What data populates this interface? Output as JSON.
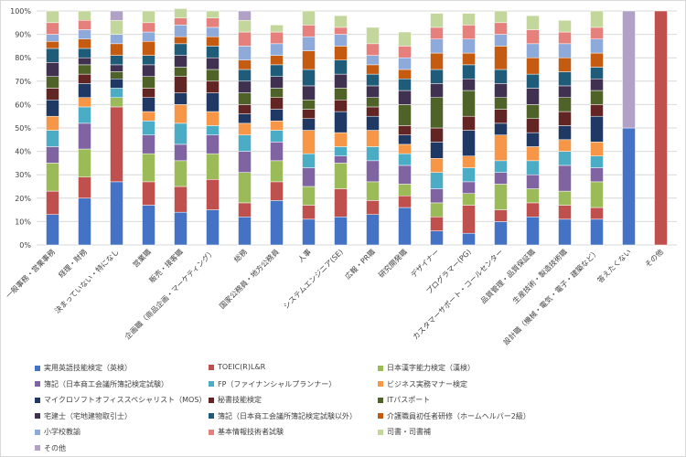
{
  "chart_data": {
    "type": "bar",
    "stacked": true,
    "percent_stacked": true,
    "y_ticks": [
      "0%",
      "10%",
      "20%",
      "30%",
      "40%",
      "50%",
      "60%",
      "70%",
      "80%",
      "90%",
      "100%"
    ],
    "ylim": [
      0,
      100
    ],
    "grid": true,
    "legend_position": "bottom",
    "categories": [
      "一般事務・営業事務",
      "経理・財務",
      "決まっていない・特になし",
      "営業職",
      "販売・接客職",
      "企画職（商品企画・マーケティング）",
      "総務",
      "国家公務員・地方公務員",
      "人事",
      "システムエンジニア(SE)",
      "広報・PR職",
      "研究開発職",
      "デザイナー",
      "プログラマー(PG)",
      "カスタマーサポート・コールセンター",
      "品質管理・品質保証職",
      "生産技術・製造技術職",
      "設計職（機械・電気・電子・建築など）",
      "答えたくない",
      "その他"
    ],
    "series": [
      {
        "name": "実用英語技能検定（英検）",
        "color": "#4472c4",
        "values": [
          13,
          20,
          27,
          17,
          14,
          15,
          12,
          19,
          11,
          12,
          13,
          16,
          6,
          5,
          10,
          12,
          11,
          11,
          50,
          0
        ]
      },
      {
        "name": "TOEIC(R)L&R",
        "color": "#c0504d",
        "values": [
          10,
          9,
          32,
          10,
          11,
          13,
          6,
          8,
          6,
          12,
          6,
          5,
          6,
          12,
          5,
          6,
          6,
          5,
          0,
          100
        ]
      },
      {
        "name": "日本漢字能力検定（漢検）",
        "color": "#9bbb59",
        "values": [
          12,
          12,
          4,
          12,
          11,
          11,
          13,
          9,
          8,
          11,
          8,
          5,
          6,
          5,
          11,
          6,
          6,
          11,
          0,
          0
        ]
      },
      {
        "name": "簿記（日本商工会議所簿記検定試験）",
        "color": "#8064a2",
        "values": [
          7,
          11,
          0,
          8,
          7,
          8,
          9,
          8,
          8,
          3,
          9,
          8,
          6,
          5,
          5,
          6,
          11,
          6,
          0,
          0
        ]
      },
      {
        "name": "FP（ファイナンシャルプランナー）",
        "color": "#4bacc6",
        "values": [
          7,
          7,
          4,
          6,
          9,
          4,
          7,
          5,
          6,
          4,
          6,
          5,
          7,
          6,
          5,
          6,
          6,
          5,
          0,
          0
        ]
      },
      {
        "name": "ビジネス実務マナー検定",
        "color": "#f79646",
        "values": [
          6,
          4,
          0,
          4,
          8,
          6,
          5,
          4,
          10,
          6,
          7,
          4,
          6,
          5,
          11,
          6,
          5,
          6,
          0,
          0
        ]
      },
      {
        "name": "マイクロソフトオフィススペシャリスト（MOS）",
        "color": "#1f3864",
        "values": [
          7,
          6,
          4,
          6,
          5,
          8,
          4,
          5,
          5,
          9,
          6,
          4,
          7,
          11,
          5,
          6,
          6,
          11,
          0,
          0
        ]
      },
      {
        "name": "秘書技能検定",
        "color": "#632523",
        "values": [
          5,
          4,
          0,
          4,
          7,
          5,
          4,
          5,
          4,
          5,
          4,
          4,
          6,
          6,
          6,
          6,
          6,
          5,
          0,
          0
        ]
      },
      {
        "name": "ITパスポート",
        "color": "#4f6228",
        "values": [
          5,
          4,
          3,
          5,
          4,
          5,
          5,
          4,
          4,
          5,
          4,
          9,
          13,
          11,
          5,
          6,
          6,
          6,
          0,
          0
        ]
      },
      {
        "name": "宅建士（宅地建物取引士）",
        "color": "#403151",
        "values": [
          6,
          3,
          3,
          5,
          5,
          5,
          5,
          5,
          6,
          6,
          5,
          6,
          6,
          5,
          6,
          7,
          5,
          5,
          0,
          0
        ]
      },
      {
        "name": "簿記（日本商工会議所簿記検定試験以外）",
        "color": "#1f5c79",
        "values": [
          6,
          4,
          4,
          4,
          5,
          5,
          5,
          5,
          7,
          6,
          5,
          5,
          6,
          6,
          6,
          6,
          6,
          5,
          0,
          0
        ]
      },
      {
        "name": "介護職員初任者研修（ホームヘルパー2級）",
        "color": "#c55a11",
        "values": [
          3,
          4,
          5,
          6,
          3,
          4,
          4,
          4,
          8,
          6,
          4,
          4,
          7,
          5,
          10,
          7,
          6,
          6,
          0,
          0
        ]
      },
      {
        "name": "小学校教諭",
        "color": "#8eaadb",
        "values": [
          3,
          4,
          4,
          4,
          5,
          4,
          6,
          5,
          6,
          5,
          4,
          5,
          6,
          6,
          5,
          6,
          6,
          6,
          0,
          0
        ]
      },
      {
        "name": "基本情報技術者試験",
        "color": "#e6807c",
        "values": [
          5,
          4,
          0,
          4,
          3,
          4,
          6,
          5,
          5,
          3,
          5,
          5,
          5,
          6,
          5,
          6,
          5,
          5,
          0,
          0
        ]
      },
      {
        "name": "司書・司書補",
        "color": "#c3d69b",
        "values": [
          5,
          4,
          6,
          5,
          4,
          3,
          5,
          3,
          6,
          5,
          7,
          6,
          6,
          5,
          5,
          6,
          5,
          7,
          0,
          0
        ]
      },
      {
        "name": "その他",
        "color": "#b2a1c7",
        "values": [
          0,
          0,
          4,
          0,
          0,
          0,
          4,
          0,
          0,
          0,
          0,
          0,
          0,
          0,
          0,
          0,
          0,
          0,
          50,
          0
        ]
      }
    ]
  }
}
